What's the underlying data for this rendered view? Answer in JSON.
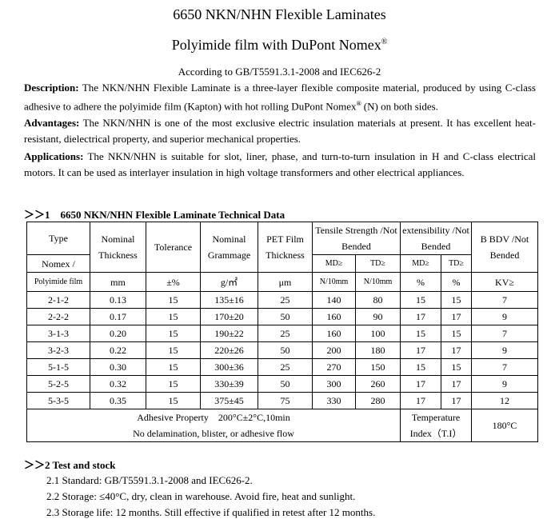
{
  "title": "6650 NKN/NHN Flexible Laminates",
  "subtitle": "Polyimide film with DuPont Nomex",
  "subtitle_sup": "®",
  "standard": "According to GB/T5591.3.1-2008 and IEC626-2",
  "description": {
    "label": "Description:",
    "text1": " The NKN/NHN Flexible Laminate is a three-layer flexible composite material, produced by using C-class adhesive to adhere the polyimide film (Kapton) with hot rolling DuPont Nomex",
    "sup": "®",
    "text2": " (N) on both sides."
  },
  "advantages": {
    "label": "Advantages:",
    "text": " The NKN/NHN is one of the most exclusive electric insulation materials at present. It has excellent heat-resistant, dielectrical property, and superior mechanical properties."
  },
  "applications": {
    "label": "Applications:",
    "text": " The NKN/NHN is suitable for slot, liner, phase, and turn-to-turn insulation in H and C-class electrical motors. It can be used as interlayer insulation in high voltage transformers and other electrical appliances."
  },
  "section1": "＞＞1　6650 NKN/NHN Flexible Laminate Technical Data",
  "table": {
    "h": {
      "type": "Type",
      "thick": "Nominal Thickness",
      "tol": "Tolerance",
      "gram": "Nominal Grammage",
      "pet": "PET Film Thickness",
      "tensile": "Tensile Strength /Not Bended",
      "ext": "extensibility /Not Bended",
      "bdv": "B BDV /Not Bended",
      "nomex": "Nomex /",
      "md": "MD≥",
      "td": "TD≥",
      "md2": "MD≥",
      "td2": "TD≥",
      "poly": "Polyimide film",
      "u_mm": "mm",
      "u_tol": "±%",
      "u_gram": "g/㎡",
      "u_pet": "μm",
      "u_n1": "N/10mm",
      "u_n2": "N/10mm",
      "u_p1": "%",
      "u_p2": "%",
      "u_kv": "KV≥"
    },
    "rows": [
      [
        "2-1-2",
        "0.13",
        "15",
        "135±16",
        "25",
        "140",
        "80",
        "15",
        "15",
        "7"
      ],
      [
        "2-2-2",
        "0.17",
        "15",
        "170±20",
        "50",
        "160",
        "90",
        "17",
        "17",
        "9"
      ],
      [
        "3-1-3",
        "0.20",
        "15",
        "190±22",
        "25",
        "160",
        "100",
        "15",
        "15",
        "7"
      ],
      [
        "3-2-3",
        "0.22",
        "15",
        "220±26",
        "50",
        "200",
        "180",
        "17",
        "17",
        "9"
      ],
      [
        "5-1-5",
        "0.30",
        "15",
        "300±36",
        "25",
        "270",
        "150",
        "15",
        "15",
        "7"
      ],
      [
        "5-2-5",
        "0.32",
        "15",
        "330±39",
        "50",
        "300",
        "260",
        "17",
        "17",
        "9"
      ],
      [
        "5-3-5",
        "0.35",
        "15",
        "375±45",
        "75",
        "330",
        "280",
        "17",
        "17",
        "12"
      ]
    ],
    "adhesive1": "Adhesive Property　200°C±2°C,10min",
    "adhesive2": "No delamination, blister, or adhesive flow",
    "ti_label": "Temperature Index（T.I）",
    "ti_value": "180°C"
  },
  "section2": "＞＞2 Test and stock",
  "items": [
    "2.1 Standard: GB/T5591.3.1-2008 and IEC626-2.",
    "2.2 Storage: ≤40°C, dry, clean in warehouse. Avoid fire, heat and sunlight.",
    "2.3 Storage life: 12 months. Still effective if qualified in retest after 12 months."
  ]
}
